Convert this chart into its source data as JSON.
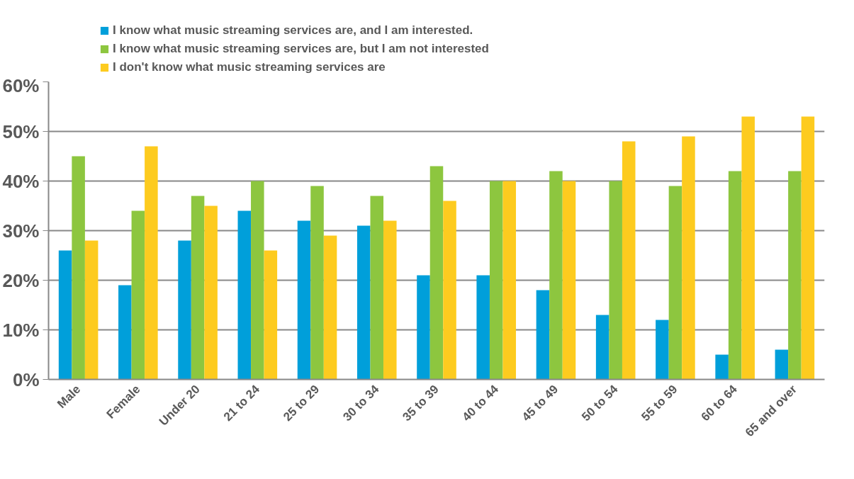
{
  "chart_data": {
    "type": "bar",
    "categories": [
      "Male",
      "Female",
      "Under 20",
      "21 to 24",
      "25 to 29",
      "30 to 34",
      "35 to 39",
      "40 to 44",
      "45 to 49",
      "50 to 54",
      "55 to 59",
      "60 to 64",
      "65 and over"
    ],
    "series": [
      {
        "name": "I know what music streaming services are, and I am interested.",
        "color": "#009fda",
        "values": [
          26,
          19,
          28,
          34,
          32,
          31,
          21,
          21,
          18,
          13,
          12,
          5,
          6
        ]
      },
      {
        "name": "I know what music streaming services are, but I am not interested",
        "color": "#8dc63f",
        "values": [
          45,
          34,
          37,
          40,
          39,
          37,
          43,
          40,
          42,
          40,
          39,
          42,
          42
        ]
      },
      {
        "name": "I don't know what music streaming services are",
        "color": "#fdcb1f",
        "values": [
          28,
          47,
          35,
          26,
          29,
          32,
          36,
          40,
          40,
          48,
          49,
          53,
          53
        ]
      }
    ],
    "ylim": [
      0,
      60
    ],
    "yticks": [
      {
        "value": 0,
        "label": "0%"
      },
      {
        "value": 10,
        "label": "10%"
      },
      {
        "value": 20,
        "label": "20%"
      },
      {
        "value": 30,
        "label": "30%"
      },
      {
        "value": 40,
        "label": "40%"
      },
      {
        "value": 50,
        "label": "50%"
      },
      {
        "value": 60,
        "label": "60%"
      }
    ],
    "grid": "y",
    "legend": "top"
  }
}
